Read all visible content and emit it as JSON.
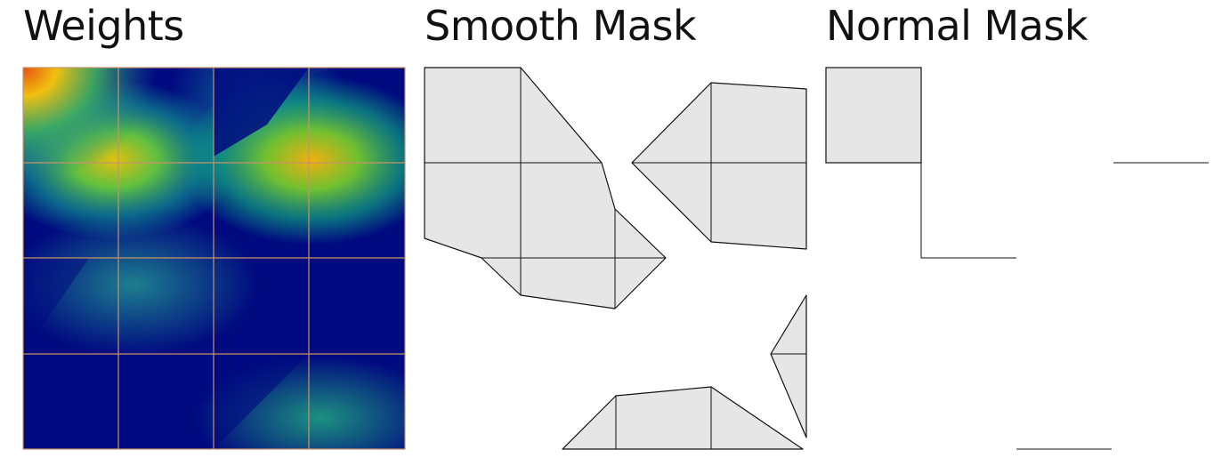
{
  "panels": {
    "weights": {
      "title": "Weights"
    },
    "smooth": {
      "title": "Smooth Mask"
    },
    "normal": {
      "title": "Normal Mask"
    }
  },
  "colors": {
    "background": "#ffffff",
    "mask_fill": "#e6e6e6",
    "mask_edge": "#111111",
    "grid_line": "#c8926a",
    "heat_low": "#000080",
    "heat_mid": "#20a080",
    "heat_high": "#ffd200",
    "heat_peak": "#e85010"
  }
}
